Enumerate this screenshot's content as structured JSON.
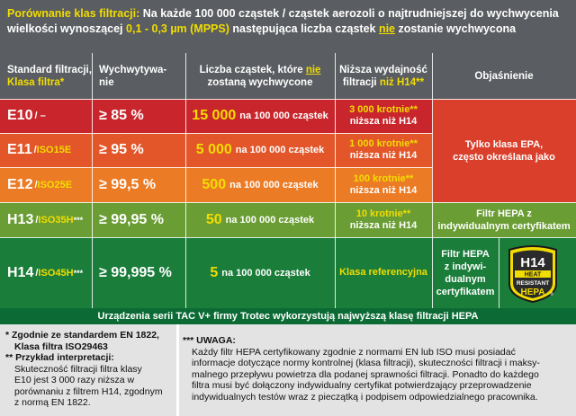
{
  "title": {
    "prefix": "Porównanie klas filtracji:",
    "text_a": " Na każde 100 000 cząstek / cząstek aerozoli o najtrudniejszej do wychwycenia",
    "text_b": "wielkości wynoszącej ",
    "mpps": "0,1 - 0,3 µm (MPPS)",
    "text_c": " następująca liczba cząstek ",
    "nie": "nie",
    "text_d": " zostanie wychwycona"
  },
  "header": {
    "standard_line1": "Standard filtracji,",
    "standard_line2": "Klasa filtra*",
    "capture_line1": "Wychwytywa-",
    "capture_line2": "nie",
    "count_line1a": "Liczba cząstek, które ",
    "count_nie": "nie",
    "count_line2": "zostaną wychwycone",
    "lower_line1": "Niższa wydajność",
    "lower_line2a": "filtracji ",
    "lower_line2b": "niż H14**",
    "explain": "Objaśnienie"
  },
  "rows": [
    {
      "class": "E10",
      "iso": "/ –",
      "sup": "",
      "capture": "≥ 85 %",
      "count": "15 000",
      "count_suffix": "na 100 000 cząstek",
      "lower_a": "3 000 krotnie**",
      "lower_b": "niższa niż H14",
      "bg": "#c8262c"
    },
    {
      "class": "E11",
      "iso": "ISO15E",
      "sup": "",
      "capture": "≥ 95 %",
      "count": "5 000",
      "count_suffix": "na 100 000 cząstek",
      "lower_a": "1 000 krotnie**",
      "lower_b": "niższa niż H14",
      "bg": "#e2562a"
    },
    {
      "class": "E12",
      "iso": "ISO25E",
      "sup": "",
      "capture": "≥ 99,5 %",
      "count": "500",
      "count_suffix": "na 100 000 cząstek",
      "lower_a": "100 krotnie**",
      "lower_b": "niższa niż H14",
      "bg": "#ec7b25"
    },
    {
      "class": "H13",
      "iso": "ISO35H",
      "sup": "***",
      "capture": "≥ 99,95 %",
      "count": "50",
      "count_suffix": "na 100 000 cząstek",
      "lower_a": "10 krotnie**",
      "lower_b": "niższa niż H14",
      "bg": "#6a9d34"
    },
    {
      "class": "H14",
      "iso": "ISO45H",
      "sup": "***",
      "capture": "≥ 99,995 %",
      "count": "5",
      "count_suffix": "na 100 000 cząstek",
      "lower_a": "Klasa referencyjna",
      "lower_b": "",
      "bg": "#1a7d3a"
    }
  ],
  "explanations": {
    "epa_line1": "Tylko klasa EPA,",
    "epa_line2": "często określana jako",
    "h13_line1": "Filtr HEPA z",
    "h13_line2": "indywidualnym certyfikatem",
    "h14_line1": "Filtr HEPA",
    "h14_line2": "z indywi-",
    "h14_line3": "dualnym",
    "h14_line4": "certyfikatem"
  },
  "badge": {
    "h14": "H14",
    "heat": "HEAT",
    "resistant": "RESISTANT",
    "hepa": "HEPA",
    "reg": "®"
  },
  "bottom_bar": "Urządzenia serii TAC V+ firmy Trotec wykorzystują najwyższą klasę filtracji HEPA",
  "footnotes": {
    "star1_a": "* Zgodnie ze standardem EN 1822,",
    "star1_b": "Klasa filtra ISO29463",
    "star2_a": "** Przykład interpretacji:",
    "star2_lines": [
      "Skuteczność filtracji filtra klasy",
      "E10 jest 3 000 razy niższa w",
      "porównaniu z filtrem H14, zgodnym",
      "z normą EN 1822."
    ],
    "star3_title": "*** UWAGA:",
    "star3_lines": [
      "Każdy filtr HEPA certyfikowany zgodnie z normami EN lub ISO musi posiadać",
      "informacje dotyczące normy kontrolnej (klasa filtracji), skuteczności filtracji i maksy-",
      "malnego przepływu powietrza dla podanej sprawności filtracji. Ponadto do każdego",
      "filtra musi być dołączony indywidualny certyfikat potwierdzający przeprowadzenie",
      "indywidualnych testów wraz z pieczątką i podpisem odpowiedzialnego pracownika."
    ]
  },
  "colors": {
    "header_bg": "#5a5d61",
    "yellow": "#f2dd00",
    "red": "#c8262c",
    "orange_red": "#e2562a",
    "orange": "#ec7b25",
    "light_green": "#6a9d34",
    "dark_green": "#1a7d3a",
    "bar_green": "#0c6b35",
    "foot_bg": "#e3e3e3"
  }
}
